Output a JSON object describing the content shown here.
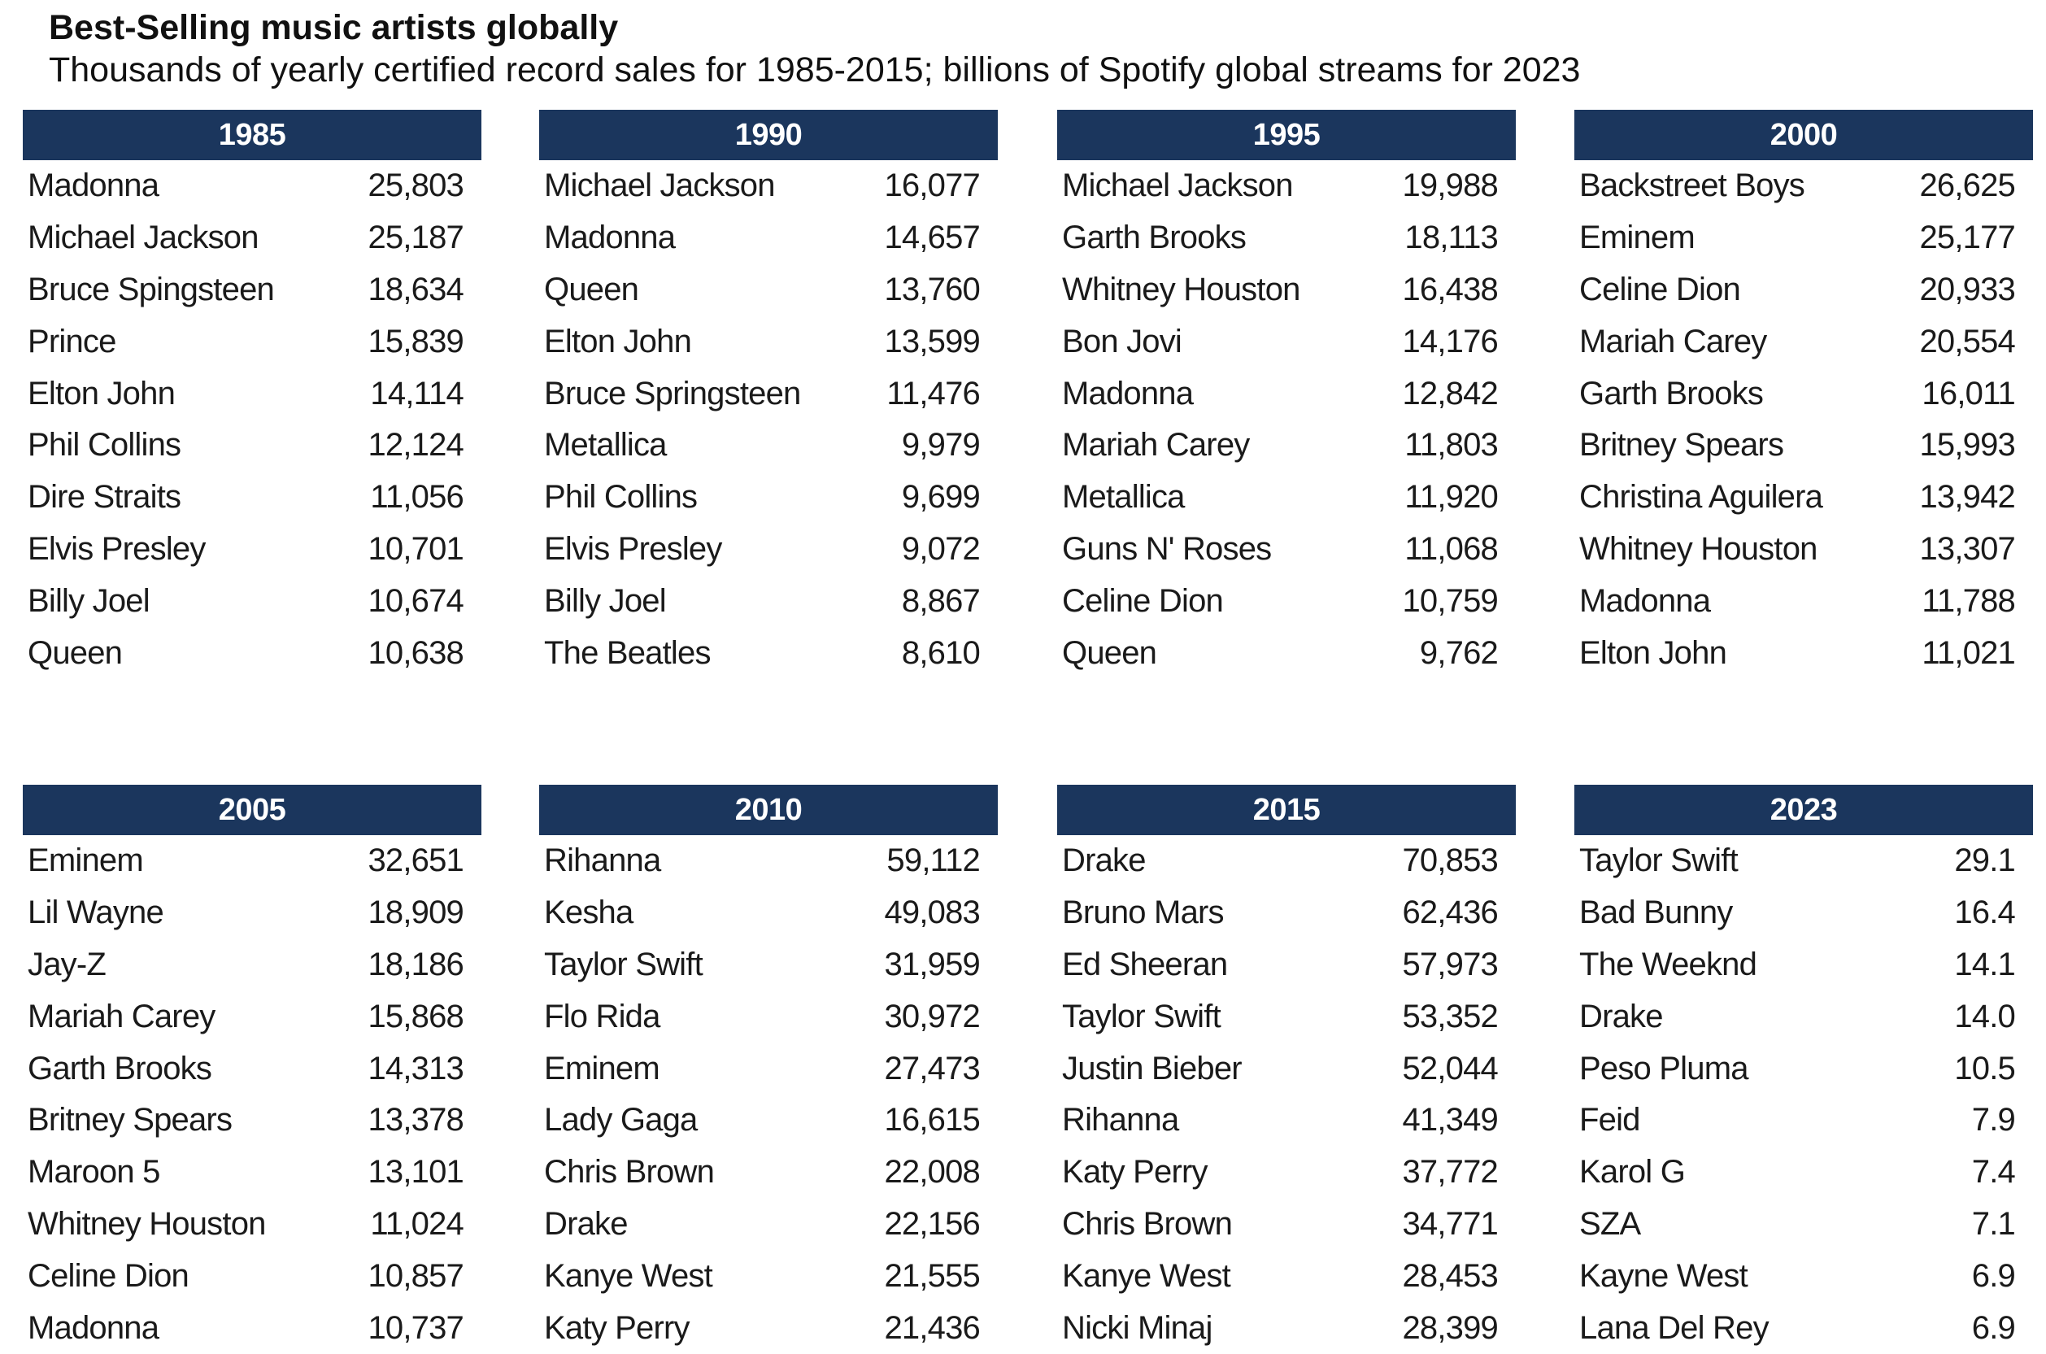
{
  "title": "Best-Selling music artists globally",
  "subtitle": "Thousands of yearly certified record sales for 1985-2015; billions of Spotify global streams for 2023",
  "panels": [
    {
      "year": "1985",
      "rows": [
        {
          "artist": "Madonna",
          "value": "25,803"
        },
        {
          "artist": "Michael Jackson",
          "value": "25,187"
        },
        {
          "artist": "Bruce Spingsteen",
          "value": "18,634"
        },
        {
          "artist": "Prince",
          "value": "15,839"
        },
        {
          "artist": "Elton John",
          "value": "14,114"
        },
        {
          "artist": "Phil Collins",
          "value": "12,124"
        },
        {
          "artist": "Dire Straits",
          "value": "11,056"
        },
        {
          "artist": "Elvis Presley",
          "value": "10,701"
        },
        {
          "artist": "Billy Joel",
          "value": "10,674"
        },
        {
          "artist": "Queen",
          "value": "10,638"
        }
      ]
    },
    {
      "year": "1990",
      "rows": [
        {
          "artist": "Michael Jackson",
          "value": "16,077"
        },
        {
          "artist": "Madonna",
          "value": "14,657"
        },
        {
          "artist": "Queen",
          "value": "13,760"
        },
        {
          "artist": "Elton John",
          "value": "13,599"
        },
        {
          "artist": "Bruce Springsteen",
          "value": "11,476"
        },
        {
          "artist": "Metallica",
          "value": "9,979"
        },
        {
          "artist": "Phil Collins",
          "value": "9,699"
        },
        {
          "artist": "Elvis Presley",
          "value": "9,072"
        },
        {
          "artist": "Billy Joel",
          "value": "8,867"
        },
        {
          "artist": "The Beatles",
          "value": "8,610"
        }
      ]
    },
    {
      "year": "1995",
      "rows": [
        {
          "artist": "Michael Jackson",
          "value": "19,988"
        },
        {
          "artist": "Garth Brooks",
          "value": "18,113"
        },
        {
          "artist": "Whitney Houston",
          "value": "16,438"
        },
        {
          "artist": "Bon Jovi",
          "value": "14,176"
        },
        {
          "artist": "Madonna",
          "value": "12,842"
        },
        {
          "artist": "Mariah Carey",
          "value": "11,803"
        },
        {
          "artist": "Metallica",
          "value": "11,920"
        },
        {
          "artist": "Guns N' Roses",
          "value": "11,068"
        },
        {
          "artist": "Celine Dion",
          "value": "10,759"
        },
        {
          "artist": "Queen",
          "value": "9,762"
        }
      ]
    },
    {
      "year": "2000",
      "rows": [
        {
          "artist": "Backstreet Boys",
          "value": "26,625"
        },
        {
          "artist": "Eminem",
          "value": "25,177"
        },
        {
          "artist": "Celine Dion",
          "value": "20,933"
        },
        {
          "artist": "Mariah Carey",
          "value": "20,554"
        },
        {
          "artist": "Garth Brooks",
          "value": "16,011"
        },
        {
          "artist": "Britney Spears",
          "value": "15,993"
        },
        {
          "artist": "Christina Aguilera",
          "value": "13,942"
        },
        {
          "artist": "Whitney Houston",
          "value": "13,307"
        },
        {
          "artist": "Madonna",
          "value": "11,788"
        },
        {
          "artist": "Elton John",
          "value": "11,021"
        }
      ]
    },
    {
      "year": "2005",
      "rows": [
        {
          "artist": "Eminem",
          "value": "32,651"
        },
        {
          "artist": "Lil Wayne",
          "value": "18,909"
        },
        {
          "artist": "Jay-Z",
          "value": "18,186"
        },
        {
          "artist": "Mariah Carey",
          "value": "15,868"
        },
        {
          "artist": "Garth Brooks",
          "value": "14,313"
        },
        {
          "artist": "Britney Spears",
          "value": "13,378"
        },
        {
          "artist": "Maroon 5",
          "value": "13,101"
        },
        {
          "artist": "Whitney Houston",
          "value": "11,024"
        },
        {
          "artist": "Celine Dion",
          "value": "10,857"
        },
        {
          "artist": "Madonna",
          "value": "10,737"
        }
      ]
    },
    {
      "year": "2010",
      "rows": [
        {
          "artist": "Rihanna",
          "value": "59,112"
        },
        {
          "artist": "Kesha",
          "value": "49,083"
        },
        {
          "artist": "Taylor Swift",
          "value": "31,959"
        },
        {
          "artist": "Flo Rida",
          "value": "30,972"
        },
        {
          "artist": "Eminem",
          "value": "27,473"
        },
        {
          "artist": "Lady Gaga",
          "value": "16,615"
        },
        {
          "artist": "Chris Brown",
          "value": "22,008"
        },
        {
          "artist": "Drake",
          "value": "22,156"
        },
        {
          "artist": "Kanye West",
          "value": "21,555"
        },
        {
          "artist": "Katy Perry",
          "value": "21,436"
        }
      ]
    },
    {
      "year": "2015",
      "rows": [
        {
          "artist": "Drake",
          "value": "70,853"
        },
        {
          "artist": "Bruno Mars",
          "value": "62,436"
        },
        {
          "artist": "Ed Sheeran",
          "value": "57,973"
        },
        {
          "artist": "Taylor Swift",
          "value": "53,352"
        },
        {
          "artist": "Justin Bieber",
          "value": "52,044"
        },
        {
          "artist": "Rihanna",
          "value": "41,349"
        },
        {
          "artist": "Katy Perry",
          "value": "37,772"
        },
        {
          "artist": "Chris Brown",
          "value": "34,771"
        },
        {
          "artist": "Kanye West",
          "value": "28,453"
        },
        {
          "artist": "Nicki Minaj",
          "value": "28,399"
        }
      ]
    },
    {
      "year": "2023",
      "rows": [
        {
          "artist": "Taylor Swift",
          "value": "29.1"
        },
        {
          "artist": "Bad Bunny",
          "value": "16.4"
        },
        {
          "artist": "The Weeknd",
          "value": "14.1"
        },
        {
          "artist": "Drake",
          "value": "14.0"
        },
        {
          "artist": "Peso Pluma",
          "value": "10.5"
        },
        {
          "artist": "Feid",
          "value": "7.9"
        },
        {
          "artist": "Karol G",
          "value": "7.4"
        },
        {
          "artist": "SZA",
          "value": "7.1"
        },
        {
          "artist": "Kayne West",
          "value": "6.9"
        },
        {
          "artist": "Lana Del Rey",
          "value": "6.9"
        }
      ]
    }
  ]
}
